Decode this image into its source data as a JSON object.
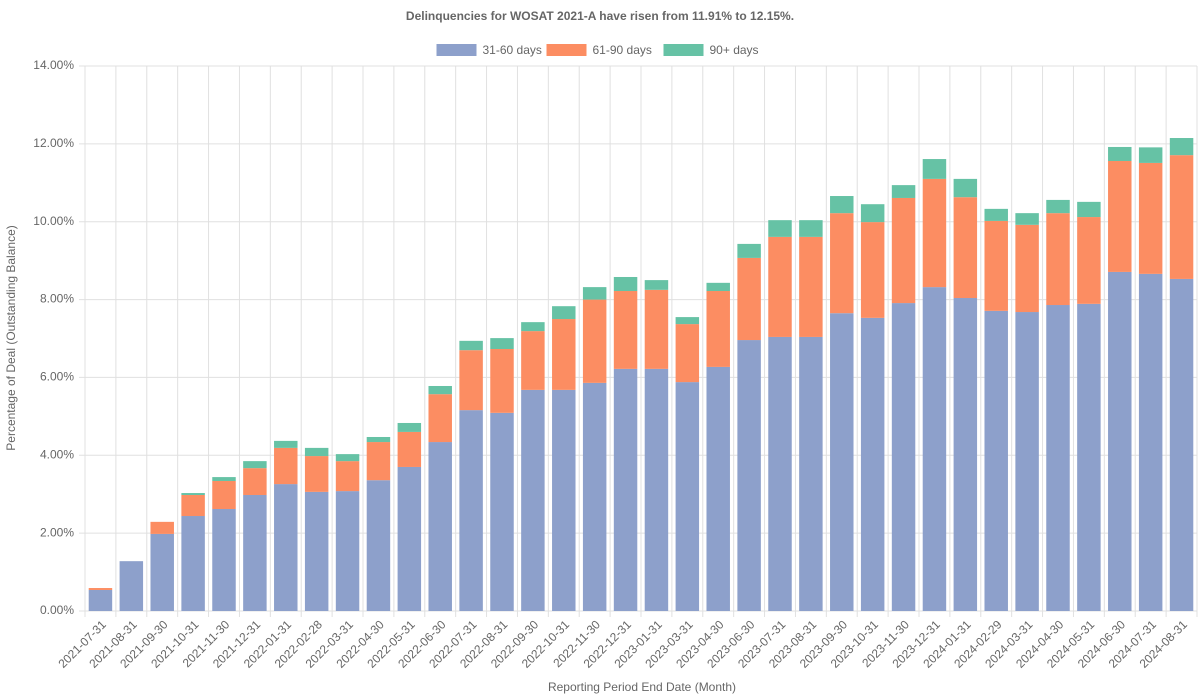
{
  "chart_data": {
    "type": "stacked_bar",
    "title": "Delinquencies for WOSAT 2021-A have risen from 11.91% to 12.15%.",
    "x_label": "Reporting Period End Date (Month)",
    "y_label": "Percentage of Deal (Outstanding Balance)",
    "categories": [
      "2021-07-31",
      "2021-08-31",
      "2021-09-30",
      "2021-10-31",
      "2021-11-30",
      "2021-12-31",
      "2022-01-31",
      "2022-02-28",
      "2022-03-31",
      "2022-04-30",
      "2022-05-31",
      "2022-06-30",
      "2022-07-31",
      "2022-08-31",
      "2022-09-30",
      "2022-10-31",
      "2022-11-30",
      "2022-12-31",
      "2023-01-31",
      "2023-03-31",
      "2023-04-30",
      "2023-06-30",
      "2023-07-31",
      "2023-08-31",
      "2023-09-30",
      "2023-10-31",
      "2023-11-30",
      "2023-12-31",
      "2024-01-31",
      "2024-02-29",
      "2024-03-31",
      "2024-04-30",
      "2024-05-31",
      "2024-06-30",
      "2024-07-31",
      "2024-08-31"
    ],
    "series": [
      {
        "name": "31-60 days",
        "color": "#8da0cb",
        "values": [
          0.54,
          1.28,
          1.98,
          2.44,
          2.62,
          2.98,
          3.26,
          3.06,
          3.08,
          3.36,
          3.7,
          4.34,
          5.16,
          5.09,
          5.68,
          5.68,
          5.86,
          6.22,
          6.22,
          5.88,
          6.27,
          6.96,
          7.04,
          7.04,
          7.65,
          7.53,
          7.91,
          8.32,
          8.04,
          7.71,
          7.68,
          7.86,
          7.89,
          8.71,
          8.66,
          8.53
        ]
      },
      {
        "name": "61-90 days",
        "color": "#fc8d62",
        "values": [
          0.05,
          0,
          0.31,
          0.54,
          0.72,
          0.69,
          0.93,
          0.92,
          0.77,
          0.98,
          0.9,
          1.23,
          1.54,
          1.64,
          1.51,
          1.82,
          2.14,
          2.0,
          2.03,
          1.49,
          1.95,
          2.11,
          2.57,
          2.57,
          2.57,
          2.46,
          2.7,
          2.78,
          2.59,
          2.31,
          2.24,
          2.36,
          2.23,
          2.85,
          2.85,
          3.18
        ]
      },
      {
        "name": "90+ days",
        "color": "#66c2a5",
        "values": [
          0,
          0,
          0,
          0.05,
          0.1,
          0.18,
          0.18,
          0.21,
          0.18,
          0.13,
          0.23,
          0.21,
          0.24,
          0.28,
          0.23,
          0.33,
          0.32,
          0.36,
          0.25,
          0.18,
          0.21,
          0.36,
          0.43,
          0.43,
          0.44,
          0.46,
          0.33,
          0.51,
          0.47,
          0.31,
          0.3,
          0.34,
          0.39,
          0.36,
          0.4,
          0.44
        ]
      }
    ],
    "ylim": [
      0,
      14
    ],
    "yticks": [
      {
        "value": 0,
        "label": "0.00%"
      },
      {
        "value": 2,
        "label": "2.00%"
      },
      {
        "value": 4,
        "label": "4.00%"
      },
      {
        "value": 6,
        "label": "6.00%"
      },
      {
        "value": 8,
        "label": "8.00%"
      },
      {
        "value": 10,
        "label": "10.00%"
      },
      {
        "value": 12,
        "label": "12.00%"
      },
      {
        "value": 14,
        "label": "14.00%"
      }
    ],
    "grid": true
  }
}
